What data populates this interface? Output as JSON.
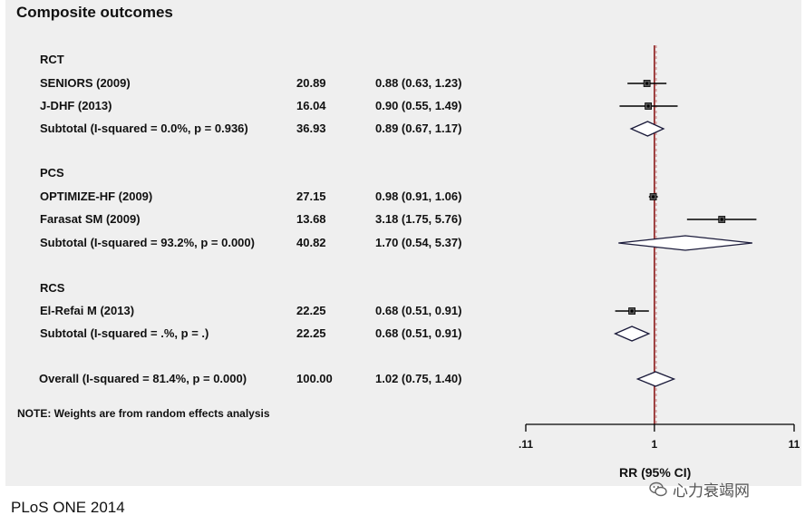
{
  "chart_data": {
    "type": "forest",
    "title": "Composite outcomes",
    "xlabel": "RR (95% CI)",
    "x_scale": "log",
    "x_ticks": [
      0.11,
      1,
      11
    ],
    "x_tick_labels": [
      ".11",
      "1",
      "11"
    ],
    "reference_line": 1,
    "rows": [
      {
        "kind": "group",
        "label": "RCT"
      },
      {
        "kind": "study",
        "label": "SENIORS (2009)",
        "weight": "20.89",
        "ci_text": "0.88 (0.63, 1.23)",
        "rr": 0.88,
        "lo": 0.63,
        "hi": 1.23
      },
      {
        "kind": "study",
        "label": "J-DHF (2013)",
        "weight": "16.04",
        "ci_text": "0.90 (0.55, 1.49)",
        "rr": 0.9,
        "lo": 0.55,
        "hi": 1.49
      },
      {
        "kind": "subtotal",
        "label": "Subtotal  (I-squared = 0.0%, p = 0.936)",
        "weight": "36.93",
        "ci_text": "0.89 (0.67, 1.17)",
        "rr": 0.89,
        "lo": 0.67,
        "hi": 1.17
      },
      {
        "kind": "group",
        "label": "PCS"
      },
      {
        "kind": "study",
        "label": "OPTIMIZE-HF  (2009)",
        "weight": "27.15",
        "ci_text": "0.98 (0.91, 1.06)",
        "rr": 0.98,
        "lo": 0.91,
        "hi": 1.06
      },
      {
        "kind": "study",
        "label": "Farasat SM (2009)",
        "weight": "13.68",
        "ci_text": "3.18 (1.75, 5.76)",
        "rr": 3.18,
        "lo": 1.75,
        "hi": 5.76
      },
      {
        "kind": "subtotal",
        "label": "Subtotal  (I-squared = 93.2%, p = 0.000)",
        "weight": "40.82",
        "ci_text": "1.70 (0.54, 5.37)",
        "rr": 1.7,
        "lo": 0.54,
        "hi": 5.37
      },
      {
        "kind": "group",
        "label": "RCS"
      },
      {
        "kind": "study",
        "label": "El-Refai M (2013)",
        "weight": "22.25",
        "ci_text": "0.68 (0.51, 0.91)",
        "rr": 0.68,
        "lo": 0.51,
        "hi": 0.91
      },
      {
        "kind": "subtotal",
        "label": "Subtotal  (I-squared = .%, p = .)",
        "weight": "22.25",
        "ci_text": "0.68 (0.51, 0.91)",
        "rr": 0.68,
        "lo": 0.51,
        "hi": 0.91
      },
      {
        "kind": "overall",
        "label": "Overall  (I-squared = 81.4%, p = 0.000)",
        "weight": "100.00",
        "ci_text": "1.02 (0.75, 1.40)",
        "rr": 1.02,
        "lo": 0.75,
        "hi": 1.4
      }
    ],
    "note": "NOTE: Weights are from random effects analysis",
    "colors": {
      "marker": "#000000",
      "reference_line": "#8b1a1a",
      "background": "#efefef"
    }
  },
  "footer": {
    "source": "PLoS ONE 2014",
    "watermark": "心力衰竭网"
  }
}
